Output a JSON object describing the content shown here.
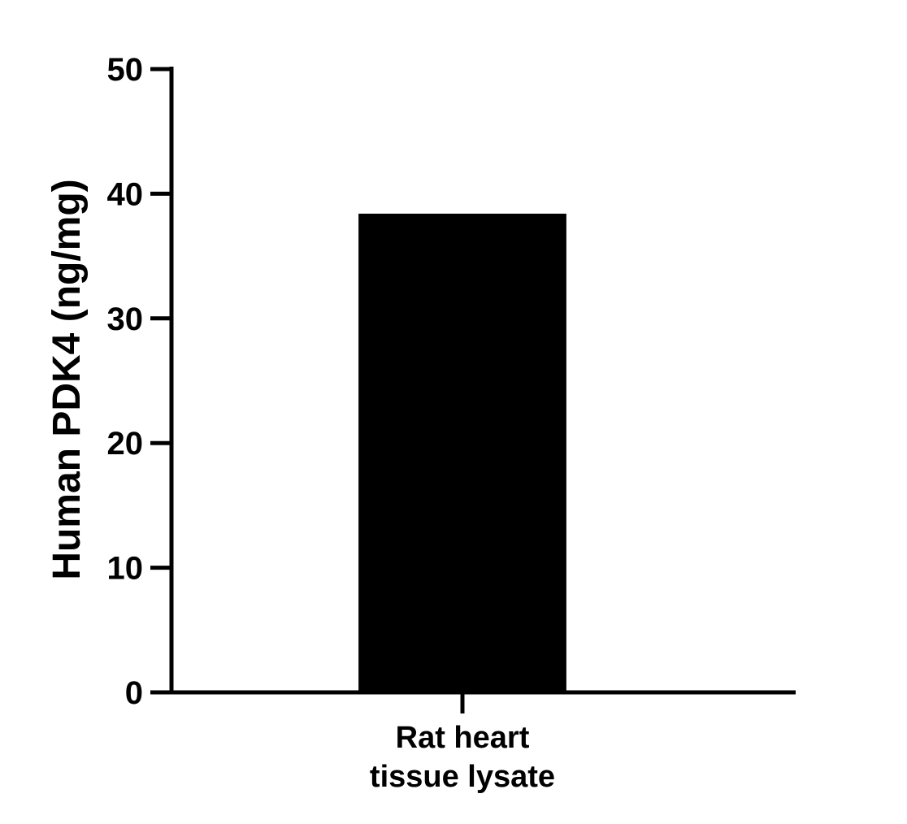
{
  "chart_data": {
    "type": "bar",
    "title": "",
    "xlabel": "",
    "ylabel": "Human PDK4 (ng/mg)",
    "categories": [
      "Rat heart tissue lysate"
    ],
    "category_label_lines": [
      [
        "Rat heart",
        "tissue lysate"
      ]
    ],
    "values": [
      38.4
    ],
    "ylim": [
      0,
      50
    ],
    "yticks": [
      0,
      10,
      20,
      30,
      40,
      50
    ],
    "ytick_labels": [
      "0",
      "10",
      "20",
      "30",
      "40",
      "50"
    ],
    "grid": false,
    "legend": "none",
    "bar_color": "#000000",
    "axis_color": "#000000"
  }
}
